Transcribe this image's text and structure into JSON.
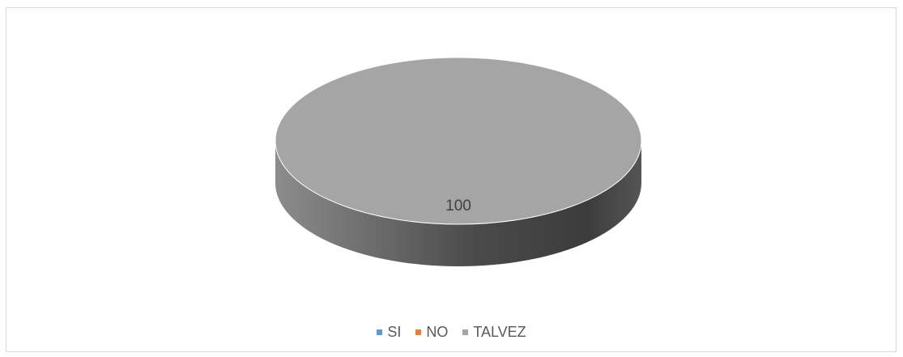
{
  "chart_data": {
    "type": "pie",
    "style": "3d",
    "title": "",
    "categories": [
      "SI",
      "NO",
      "TALVEZ"
    ],
    "values": [
      0,
      0,
      100
    ],
    "colors": [
      "#5b9bd5",
      "#ed7d31",
      "#a5a5a5"
    ],
    "data_labels": [
      "",
      "",
      "100"
    ],
    "legend_position": "bottom"
  }
}
